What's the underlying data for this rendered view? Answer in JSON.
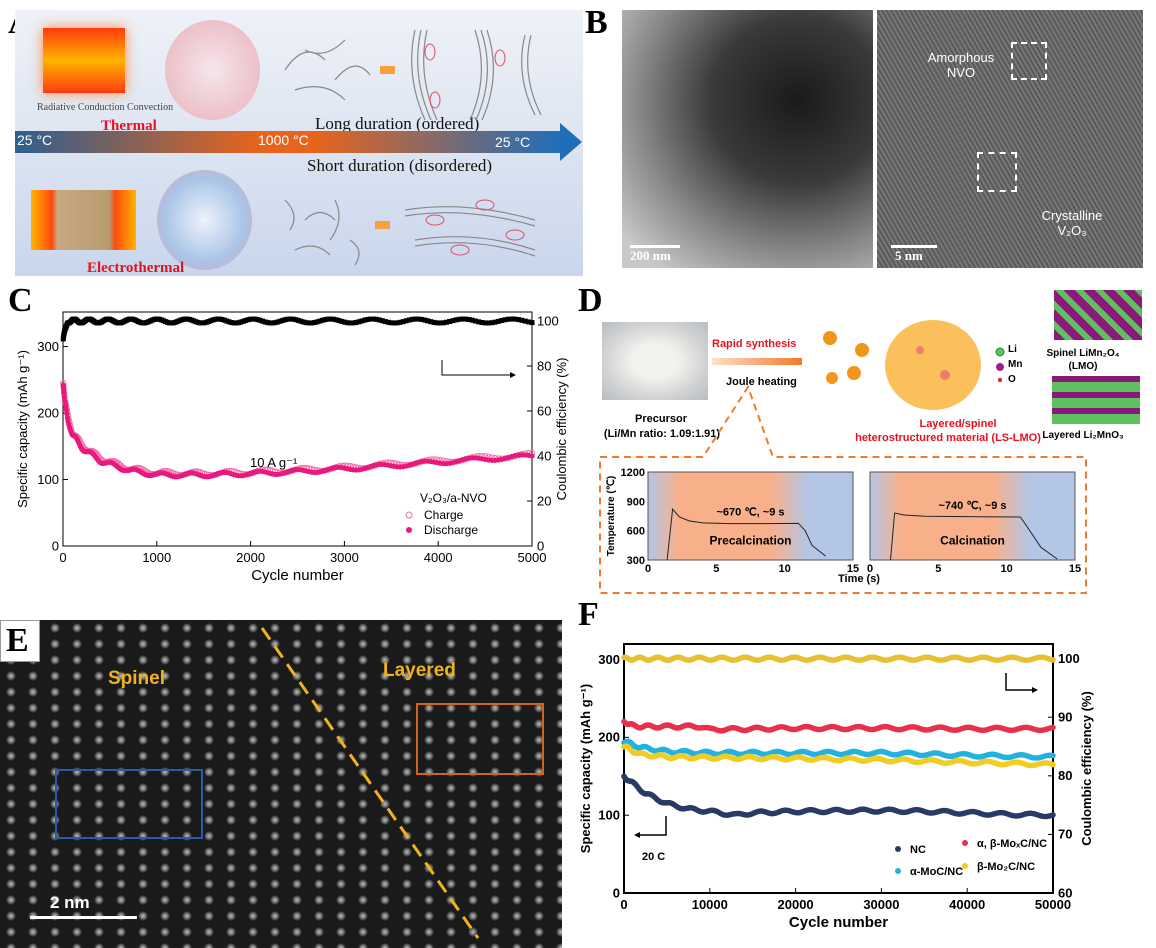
{
  "panel_labels": {
    "a": "A",
    "b": "B",
    "c": "C",
    "d": "D",
    "e": "E",
    "f": "F"
  },
  "panel_a": {
    "modes": "Radiative Conduction Convection",
    "thermal": "Thermal",
    "electrothermal": "Electrothermal",
    "long": "Long duration (ordered)",
    "short": "Short duration (disordered)",
    "t_start": "25 °C",
    "t_peak": "1000 °C",
    "t_end": "25 °C",
    "colors": {
      "red_label": "#e8101e",
      "arrow_blue": "#1f6fb8",
      "arrow_orange": "#e8641c"
    }
  },
  "panel_b": {
    "scale_left": "200 nm",
    "scale_right": "5 nm",
    "amorphous": "Amorphous NVO",
    "crystalline": "Crystalline V₂O₃"
  },
  "panel_e": {
    "spinel": "Spinel",
    "layered": "Layered",
    "scale": "2 nm",
    "colors": {
      "spinel_box": "#2a5aa8",
      "layered_box": "#d0661c",
      "label": "#f0b21e"
    }
  },
  "panel_d": {
    "precursor": "Precursor",
    "ratio": "(Li/Mn ratio: 1.09:1.91)",
    "rapid": "Rapid synthesis",
    "joule": "Joule heating",
    "product_1": "Layered/spinel",
    "product_2": "heterostructured material (LS-LMO)",
    "legend_li": "Li",
    "legend_mn": "Mn",
    "legend_o": "O",
    "spinel_1": "Spinel LiMn₂O₄",
    "spinel_2": "(LMO)",
    "layered": "Layered Li₂MnO₃"
  },
  "chart_data": [
    {
      "id": "C",
      "type": "scatter",
      "xlabel": "Cycle number",
      "ylabel": "Specific capacity (mAh g⁻¹)",
      "y2label": "Coulombic efficiency (%)",
      "xlim": [
        0,
        5000
      ],
      "ylim": [
        0,
        352
      ],
      "y2lim": [
        0,
        104
      ],
      "xticks": [
        "0",
        "1000",
        "2000",
        "3000",
        "4000",
        "5000"
      ],
      "yticks": [
        "0",
        "100",
        "200",
        "300"
      ],
      "y2ticks": [
        "0",
        "20",
        "40",
        "60",
        "80",
        "100"
      ],
      "annotation": "10 A g⁻¹",
      "legend_title": "V₂O₃/a-NVO",
      "legend_position": "bottom-right",
      "series": [
        {
          "name": "Charge",
          "color": "#f06ca8",
          "marker": "open-circle",
          "axis": "left",
          "x": [
            1,
            20,
            50,
            100,
            200,
            400,
            700,
            1000,
            1500,
            2000,
            2500,
            3000,
            3500,
            4000,
            4500,
            5000
          ],
          "y": [
            250,
            220,
            195,
            172,
            152,
            132,
            117,
            110,
            109,
            111,
            114,
            118,
            123,
            128,
            133,
            137
          ]
        },
        {
          "name": "Discharge",
          "color": "#e8187c",
          "marker": "filled-circle",
          "axis": "left",
          "x": [
            1,
            20,
            50,
            100,
            200,
            400,
            700,
            1000,
            1500,
            2000,
            2500,
            3000,
            3500,
            4000,
            4500,
            5000
          ],
          "y": [
            248,
            215,
            190,
            168,
            148,
            128,
            114,
            107,
            107,
            109,
            112,
            116,
            121,
            126,
            131,
            135
          ]
        },
        {
          "color": "#000000",
          "marker": "filled-square",
          "axis": "right",
          "x": [
            1,
            50,
            500,
            1000,
            2000,
            3000,
            4000,
            5000
          ],
          "y": [
            92,
            100,
            100,
            100,
            100,
            100,
            100,
            100
          ]
        }
      ]
    },
    {
      "id": "D-precalcination",
      "type": "line",
      "xlabel": "Time (s)",
      "ylabel": "Temperature (℃)",
      "xlim": [
        0,
        15
      ],
      "ylim": [
        300,
        1200
      ],
      "xticks": [
        "0",
        "5",
        "10",
        "15"
      ],
      "yticks": [
        "300",
        "600",
        "900",
        "1200"
      ],
      "annotation": "~670 ℃, ~9 s",
      "stage": "Precalcination",
      "series": [
        {
          "x": [
            1.4,
            1.8,
            2.3,
            3,
            4,
            6,
            8,
            11,
            11.5,
            12,
            13
          ],
          "y": [
            300,
            820,
            740,
            700,
            680,
            672,
            672,
            675,
            600,
            450,
            340
          ]
        }
      ]
    },
    {
      "id": "D-calcination",
      "type": "line",
      "xlabel": "Time (s)",
      "ylabel": "",
      "xlim": [
        0,
        15
      ],
      "ylim": [
        300,
        1200
      ],
      "xticks": [
        "0",
        "5",
        "10",
        "15"
      ],
      "annotation": "~740 ℃, ~9 s",
      "stage": "Calcination",
      "series": [
        {
          "x": [
            1.5,
            1.8,
            2.5,
            4,
            6,
            8,
            11,
            11.5,
            12.5,
            13.7
          ],
          "y": [
            300,
            780,
            760,
            748,
            745,
            742,
            740,
            640,
            430,
            310
          ]
        }
      ]
    },
    {
      "id": "F",
      "type": "scatter",
      "xlabel": "Cycle number",
      "ylabel": "Specific capacity (mAh g⁻¹)",
      "y2label": "Coulombic efficiency (%)",
      "xlim": [
        0,
        50000
      ],
      "ylim": [
        0,
        320
      ],
      "y2lim": [
        60,
        102.5
      ],
      "xticks": [
        "0",
        "10000",
        "20000",
        "30000",
        "40000",
        "50000"
      ],
      "yticks": [
        "0",
        "100",
        "200",
        "300"
      ],
      "y2ticks": [
        "60",
        "70",
        "80",
        "90",
        "100"
      ],
      "annotation": "20 C",
      "legend_position": "bottom-right",
      "series": [
        {
          "name": "NC",
          "color": "#2a3a66",
          "axis": "left",
          "x": [
            0,
            2500,
            5000,
            7500,
            10000,
            13000,
            15000,
            20000,
            30000,
            35000,
            40000,
            45000,
            50000
          ],
          "y": [
            150,
            128,
            115,
            108,
            105,
            100,
            103,
            105,
            106,
            105,
            103,
            101,
            100
          ]
        },
        {
          "name": "α, β-MoₓC/NC",
          "color": "#e8304e",
          "axis": "left",
          "x": [
            0,
            500,
            2000,
            9000,
            10000,
            20000,
            30000,
            40000,
            50000
          ],
          "y": [
            222,
            216,
            214,
            214,
            210,
            212,
            212,
            211,
            211
          ]
        },
        {
          "name": "α-MoC/NC",
          "color": "#23b2e0",
          "axis": "left",
          "x": [
            0,
            2000,
            5000,
            10000,
            20000,
            30000,
            40000,
            50000
          ],
          "y": [
            195,
            187,
            182,
            180,
            180,
            180,
            177,
            175
          ]
        },
        {
          "name": "β-Mo₂C/NC",
          "color": "#f0cc24",
          "axis": "left",
          "x": [
            0,
            2000,
            5000,
            10000,
            20000,
            30000,
            40000,
            50000
          ],
          "y": [
            188,
            178,
            175,
            174,
            173,
            171,
            168,
            165
          ]
        },
        {
          "color": "#e8c030",
          "axis": "right",
          "x": [
            0,
            10000,
            20000,
            30000,
            40000,
            50000
          ],
          "y": [
            100,
            100,
            100,
            100,
            100,
            100
          ]
        }
      ]
    }
  ]
}
